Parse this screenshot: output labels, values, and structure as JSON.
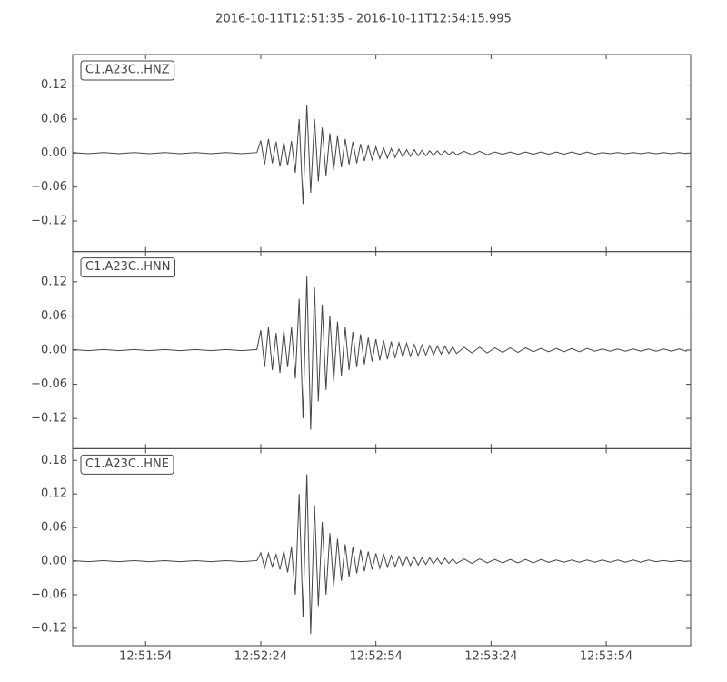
{
  "title": "2016-10-11T12:51:35  -  2016-10-11T12:54:15.995",
  "chart_data": [
    {
      "type": "line",
      "x": [
        "12:51:35",
        "12:51:39",
        "12:51:43",
        "12:51:47",
        "12:51:51",
        "12:51:55",
        "12:51:59",
        "12:52:03",
        "12:52:07",
        "12:52:11",
        "12:52:15",
        "12:52:19",
        "12:52:23",
        "12:52:24",
        "12:52:25",
        "12:52:26",
        "12:52:27",
        "12:52:28",
        "12:52:29",
        "12:52:30",
        "12:52:31",
        "12:52:32",
        "12:52:33",
        "12:52:34",
        "12:52:35",
        "12:52:36",
        "12:52:37",
        "12:52:38",
        "12:52:39",
        "12:52:40",
        "12:52:41",
        "12:52:42",
        "12:52:43",
        "12:52:44",
        "12:52:45",
        "12:52:46",
        "12:52:47",
        "12:52:48",
        "12:52:49",
        "12:52:50",
        "12:52:51",
        "12:52:52",
        "12:52:53",
        "12:52:54",
        "12:52:55",
        "12:52:56",
        "12:52:57",
        "12:52:58",
        "12:52:59",
        "12:53:00",
        "12:53:01",
        "12:53:02",
        "12:53:03",
        "12:53:04",
        "12:53:05",
        "12:53:06",
        "12:53:07",
        "12:53:08",
        "12:53:09",
        "12:53:10",
        "12:53:11",
        "12:53:12",
        "12:53:13",
        "12:53:14",
        "12:53:15",
        "12:53:17",
        "12:53:19",
        "12:53:21",
        "12:53:23",
        "12:53:25",
        "12:53:27",
        "12:53:29",
        "12:53:31",
        "12:53:33",
        "12:53:35",
        "12:53:37",
        "12:53:39",
        "12:53:41",
        "12:53:43",
        "12:53:45",
        "12:53:47",
        "12:53:49",
        "12:53:51",
        "12:53:53",
        "12:53:55",
        "12:53:57",
        "12:53:59",
        "12:54:01",
        "12:54:03",
        "12:54:05",
        "12:54:07",
        "12:54:09",
        "12:54:11",
        "12:54:13",
        "12:54:15"
      ],
      "series": [
        {
          "name": "C1.A23C..HNZ",
          "color": "#444444",
          "values": [
            0.001,
            -0.001,
            0.001,
            -0.001,
            0.001,
            -0.001,
            0.001,
            -0.001,
            0.001,
            -0.001,
            0.001,
            -0.001,
            0.001,
            0.022,
            -0.02,
            0.025,
            -0.018,
            0.02,
            -0.024,
            0.019,
            -0.022,
            0.021,
            -0.035,
            0.06,
            -0.09,
            0.085,
            -0.07,
            0.06,
            -0.05,
            0.045,
            -0.04,
            0.035,
            -0.03,
            0.03,
            -0.025,
            0.025,
            -0.02,
            0.02,
            -0.018,
            0.016,
            -0.014,
            0.013,
            -0.012,
            0.011,
            -0.01,
            0.009,
            -0.009,
            0.008,
            -0.008,
            0.007,
            -0.007,
            0.006,
            -0.006,
            0.006,
            -0.005,
            0.005,
            -0.005,
            0.004,
            -0.004,
            0.004,
            -0.004,
            0.004,
            -0.003,
            0.003,
            -0.003,
            0.003,
            -0.003,
            0.003,
            -0.003,
            0.002,
            -0.002,
            0.002,
            -0.002,
            0.002,
            -0.002,
            0.002,
            -0.002,
            0.002,
            -0.002,
            0.002,
            -0.002,
            0.002,
            -0.002,
            0.001,
            -0.001,
            0.001,
            -0.001,
            0.001,
            -0.001,
            0.001,
            -0.001,
            0.001,
            -0.001,
            0.001,
            -0.001
          ]
        }
      ],
      "xlim": [
        "12:51:35",
        "12:54:15.995"
      ],
      "xticks": [
        "12:51:54",
        "12:52:24",
        "12:52:54",
        "12:53:24",
        "12:53:54"
      ],
      "ylim": [
        -0.174,
        0.174
      ],
      "yticks": [
        {
          "value": -0.12,
          "label": "−0.12"
        },
        {
          "value": -0.06,
          "label": "−0.06"
        },
        {
          "value": 0,
          "label": "0.00"
        },
        0.06,
        0.12
      ]
    },
    {
      "type": "line",
      "x": [
        "12:51:35",
        "12:51:39",
        "12:51:43",
        "12:51:47",
        "12:51:51",
        "12:51:55",
        "12:51:59",
        "12:52:03",
        "12:52:07",
        "12:52:11",
        "12:52:15",
        "12:52:19",
        "12:52:23",
        "12:52:24",
        "12:52:25",
        "12:52:26",
        "12:52:27",
        "12:52:28",
        "12:52:29",
        "12:52:30",
        "12:52:31",
        "12:52:32",
        "12:52:33",
        "12:52:34",
        "12:52:35",
        "12:52:36",
        "12:52:37",
        "12:52:38",
        "12:52:39",
        "12:52:40",
        "12:52:41",
        "12:52:42",
        "12:52:43",
        "12:52:44",
        "12:52:45",
        "12:52:46",
        "12:52:47",
        "12:52:48",
        "12:52:49",
        "12:52:50",
        "12:52:51",
        "12:52:52",
        "12:52:53",
        "12:52:54",
        "12:52:55",
        "12:52:56",
        "12:52:57",
        "12:52:58",
        "12:52:59",
        "12:53:00",
        "12:53:01",
        "12:53:02",
        "12:53:03",
        "12:53:04",
        "12:53:05",
        "12:53:06",
        "12:53:07",
        "12:53:08",
        "12:53:09",
        "12:53:10",
        "12:53:11",
        "12:53:12",
        "12:53:13",
        "12:53:14",
        "12:53:15",
        "12:53:17",
        "12:53:19",
        "12:53:21",
        "12:53:23",
        "12:53:25",
        "12:53:27",
        "12:53:29",
        "12:53:31",
        "12:53:33",
        "12:53:35",
        "12:53:37",
        "12:53:39",
        "12:53:41",
        "12:53:43",
        "12:53:45",
        "12:53:47",
        "12:53:49",
        "12:53:51",
        "12:53:53",
        "12:53:55",
        "12:53:57",
        "12:53:59",
        "12:54:01",
        "12:54:03",
        "12:54:05",
        "12:54:07",
        "12:54:09",
        "12:54:11",
        "12:54:13",
        "12:54:15"
      ],
      "series": [
        {
          "name": "C1.A23C..HNN",
          "color": "#444444",
          "values": [
            0.001,
            -0.001,
            0.001,
            -0.001,
            0.001,
            -0.001,
            0.001,
            -0.001,
            0.001,
            -0.001,
            0.001,
            -0.001,
            0.001,
            0.035,
            -0.03,
            0.04,
            -0.035,
            0.03,
            -0.04,
            0.035,
            -0.03,
            0.04,
            -0.05,
            0.09,
            -0.12,
            0.13,
            -0.14,
            0.11,
            -0.09,
            0.08,
            -0.07,
            0.06,
            -0.055,
            0.05,
            -0.045,
            0.04,
            -0.035,
            0.032,
            -0.03,
            0.028,
            -0.025,
            0.022,
            -0.02,
            0.019,
            -0.018,
            0.017,
            -0.016,
            0.015,
            -0.014,
            0.013,
            -0.012,
            0.012,
            -0.011,
            0.01,
            -0.01,
            0.009,
            -0.009,
            0.008,
            -0.008,
            0.007,
            -0.007,
            0.007,
            -0.006,
            0.006,
            -0.006,
            0.005,
            -0.005,
            0.005,
            -0.005,
            0.004,
            -0.004,
            0.004,
            -0.004,
            0.004,
            -0.003,
            0.003,
            -0.003,
            0.003,
            -0.003,
            0.003,
            -0.003,
            0.003,
            -0.002,
            0.002,
            -0.002,
            0.002,
            -0.002,
            0.002,
            -0.002,
            0.002,
            -0.002,
            0.002,
            -0.002,
            0.002,
            -0.002
          ]
        }
      ],
      "xlim": [
        "12:51:35",
        "12:54:15.995"
      ],
      "xticks": [
        "12:51:54",
        "12:52:24",
        "12:52:54",
        "12:53:24",
        "12:53:54"
      ],
      "ylim": [
        -0.173,
        0.173
      ],
      "yticks": [
        {
          "value": -0.12,
          "label": "−0.12"
        },
        {
          "value": -0.06,
          "label": "−0.06"
        },
        {
          "value": 0,
          "label": "0.00"
        },
        0.06,
        0.12
      ]
    },
    {
      "type": "line",
      "x": [
        "12:51:35",
        "12:51:39",
        "12:51:43",
        "12:51:47",
        "12:51:51",
        "12:51:55",
        "12:51:59",
        "12:52:03",
        "12:52:07",
        "12:52:11",
        "12:52:15",
        "12:52:19",
        "12:52:23",
        "12:52:24",
        "12:52:25",
        "12:52:26",
        "12:52:27",
        "12:52:28",
        "12:52:29",
        "12:52:30",
        "12:52:31",
        "12:52:32",
        "12:52:33",
        "12:52:34",
        "12:52:35",
        "12:52:36",
        "12:52:37",
        "12:52:38",
        "12:52:39",
        "12:52:40",
        "12:52:41",
        "12:52:42",
        "12:52:43",
        "12:52:44",
        "12:52:45",
        "12:52:46",
        "12:52:47",
        "12:52:48",
        "12:52:49",
        "12:52:50",
        "12:52:51",
        "12:52:52",
        "12:52:53",
        "12:52:54",
        "12:52:55",
        "12:52:56",
        "12:52:57",
        "12:52:58",
        "12:52:59",
        "12:53:00",
        "12:53:01",
        "12:53:02",
        "12:53:03",
        "12:53:04",
        "12:53:05",
        "12:53:06",
        "12:53:07",
        "12:53:08",
        "12:53:09",
        "12:53:10",
        "12:53:11",
        "12:53:12",
        "12:53:13",
        "12:53:14",
        "12:53:15",
        "12:53:17",
        "12:53:19",
        "12:53:21",
        "12:53:23",
        "12:53:25",
        "12:53:27",
        "12:53:29",
        "12:53:31",
        "12:53:33",
        "12:53:35",
        "12:53:37",
        "12:53:39",
        "12:53:41",
        "12:53:43",
        "12:53:45",
        "12:53:47",
        "12:53:49",
        "12:53:51",
        "12:53:53",
        "12:53:55",
        "12:53:57",
        "12:53:59",
        "12:54:01",
        "12:54:03",
        "12:54:05",
        "12:54:07",
        "12:54:09",
        "12:54:11",
        "12:54:13",
        "12:54:15"
      ],
      "series": [
        {
          "name": "C1.A23C..HNE",
          "color": "#444444",
          "values": [
            0.001,
            -0.001,
            0.001,
            -0.001,
            0.001,
            -0.001,
            0.001,
            -0.001,
            0.001,
            -0.001,
            0.001,
            -0.001,
            0.001,
            0.015,
            -0.012,
            0.014,
            -0.01,
            0.012,
            -0.015,
            0.018,
            -0.02,
            0.025,
            -0.06,
            0.12,
            -0.1,
            0.155,
            -0.13,
            0.1,
            -0.08,
            0.07,
            -0.06,
            0.05,
            -0.045,
            0.04,
            -0.035,
            0.03,
            -0.028,
            0.025,
            -0.022,
            0.02,
            -0.018,
            0.017,
            -0.015,
            0.014,
            -0.013,
            0.012,
            -0.011,
            0.01,
            -0.01,
            0.009,
            -0.009,
            0.008,
            -0.008,
            0.007,
            -0.007,
            0.006,
            -0.006,
            0.006,
            -0.005,
            0.005,
            -0.005,
            0.005,
            -0.004,
            0.004,
            -0.004,
            0.004,
            -0.004,
            0.004,
            -0.003,
            0.003,
            -0.003,
            0.003,
            -0.003,
            0.003,
            -0.003,
            0.003,
            -0.002,
            0.002,
            -0.002,
            0.002,
            -0.002,
            0.002,
            -0.002,
            0.002,
            -0.002,
            0.002,
            -0.002,
            0.002,
            -0.002,
            0.002,
            -0.001,
            0.001,
            -0.001,
            0.001,
            -0.001
          ]
        }
      ],
      "xlim": [
        "12:51:35",
        "12:54:15.995"
      ],
      "xticks": [
        "12:51:54",
        "12:52:24",
        "12:52:54",
        "12:53:24",
        "12:53:54"
      ],
      "ylim": [
        -0.151,
        0.201
      ],
      "yticks": [
        {
          "value": -0.12,
          "label": "−0.12"
        },
        {
          "value": -0.06,
          "label": "−0.06"
        },
        {
          "value": 0,
          "label": "0.00"
        },
        0.06,
        0.12,
        0.18
      ]
    }
  ]
}
